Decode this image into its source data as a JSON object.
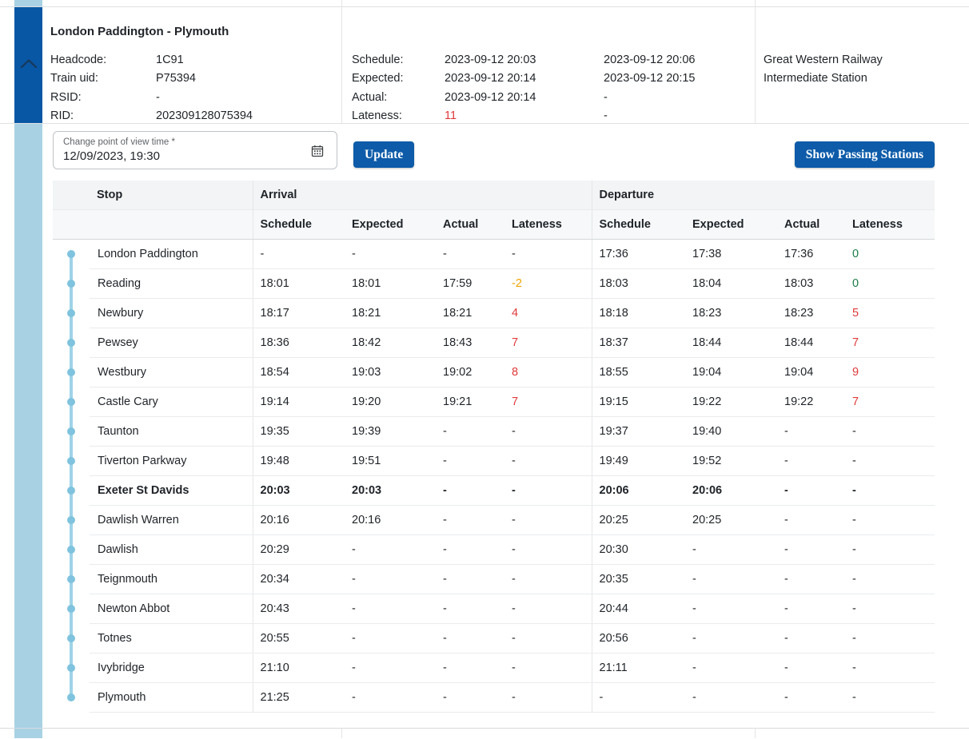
{
  "train_header": {
    "title": "London Paddington - Plymouth",
    "fields": [
      {
        "label": "Headcode:",
        "value": "1C91"
      },
      {
        "label": "Train uid:",
        "value": "P75394"
      },
      {
        "label": "RSID:",
        "value": "-"
      },
      {
        "label": "RID:",
        "value": "202309128075394"
      }
    ],
    "times": [
      {
        "label": "Schedule:",
        "arrival": "2023-09-12 20:03",
        "departure": "2023-09-12 20:06"
      },
      {
        "label": "Expected:",
        "arrival": "2023-09-12 20:14",
        "departure": "2023-09-12 20:15"
      },
      {
        "label": "Actual:",
        "arrival": "2023-09-12 20:14",
        "departure": "-"
      },
      {
        "label": "Lateness:",
        "arrival": "11",
        "departure": "-"
      }
    ],
    "operator": "Great Western Railway",
    "station_type": "Intermediate Station"
  },
  "controls": {
    "pov_label": "Change point of view time *",
    "pov_value": "12/09/2023, 19:30",
    "update_label": "Update",
    "show_passing_label": "Show Passing Stations"
  },
  "table": {
    "group_headers": [
      "Stop",
      "Arrival",
      "Departure"
    ],
    "sub_headers": [
      "Schedule",
      "Expected",
      "Actual",
      "Lateness"
    ],
    "rows": [
      {
        "stop": "London Paddington",
        "bold": false,
        "arr": [
          "-",
          "-",
          "-",
          "-"
        ],
        "dep": [
          "17:36",
          "17:38",
          "17:36",
          "0"
        ],
        "dep_late": "ontime"
      },
      {
        "stop": "Reading",
        "bold": false,
        "arr": [
          "18:01",
          "18:01",
          "17:59",
          "-2"
        ],
        "dep": [
          "18:03",
          "18:04",
          "18:03",
          "0"
        ],
        "arr_late": "early",
        "dep_late": "ontime"
      },
      {
        "stop": "Newbury",
        "bold": false,
        "arr": [
          "18:17",
          "18:21",
          "18:21",
          "4"
        ],
        "dep": [
          "18:18",
          "18:23",
          "18:23",
          "5"
        ],
        "arr_late": "late",
        "dep_late": "late"
      },
      {
        "stop": "Pewsey",
        "bold": false,
        "arr": [
          "18:36",
          "18:42",
          "18:43",
          "7"
        ],
        "dep": [
          "18:37",
          "18:44",
          "18:44",
          "7"
        ],
        "arr_late": "late",
        "dep_late": "late"
      },
      {
        "stop": "Westbury",
        "bold": false,
        "arr": [
          "18:54",
          "19:03",
          "19:02",
          "8"
        ],
        "dep": [
          "18:55",
          "19:04",
          "19:04",
          "9"
        ],
        "arr_late": "late",
        "dep_late": "late"
      },
      {
        "stop": "Castle Cary",
        "bold": false,
        "arr": [
          "19:14",
          "19:20",
          "19:21",
          "7"
        ],
        "dep": [
          "19:15",
          "19:22",
          "19:22",
          "7"
        ],
        "arr_late": "late",
        "dep_late": "late"
      },
      {
        "stop": "Taunton",
        "bold": false,
        "arr": [
          "19:35",
          "19:39",
          "-",
          "-"
        ],
        "dep": [
          "19:37",
          "19:40",
          "-",
          "-"
        ]
      },
      {
        "stop": "Tiverton Parkway",
        "bold": false,
        "arr": [
          "19:48",
          "19:51",
          "-",
          "-"
        ],
        "dep": [
          "19:49",
          "19:52",
          "-",
          "-"
        ]
      },
      {
        "stop": "Exeter St Davids",
        "bold": true,
        "arr": [
          "20:03",
          "20:03",
          "-",
          "-"
        ],
        "dep": [
          "20:06",
          "20:06",
          "-",
          "-"
        ]
      },
      {
        "stop": "Dawlish Warren",
        "bold": false,
        "arr": [
          "20:16",
          "20:16",
          "-",
          "-"
        ],
        "dep": [
          "20:25",
          "20:25",
          "-",
          "-"
        ]
      },
      {
        "stop": "Dawlish",
        "bold": false,
        "arr": [
          "20:29",
          "-",
          "-",
          "-"
        ],
        "dep": [
          "20:30",
          "-",
          "-",
          "-"
        ]
      },
      {
        "stop": "Teignmouth",
        "bold": false,
        "arr": [
          "20:34",
          "-",
          "-",
          "-"
        ],
        "dep": [
          "20:35",
          "-",
          "-",
          "-"
        ]
      },
      {
        "stop": "Newton Abbot",
        "bold": false,
        "arr": [
          "20:43",
          "-",
          "-",
          "-"
        ],
        "dep": [
          "20:44",
          "-",
          "-",
          "-"
        ]
      },
      {
        "stop": "Totnes",
        "bold": false,
        "arr": [
          "20:55",
          "-",
          "-",
          "-"
        ],
        "dep": [
          "20:56",
          "-",
          "-",
          "-"
        ]
      },
      {
        "stop": "Ivybridge",
        "bold": false,
        "arr": [
          "21:10",
          "-",
          "-",
          "-"
        ],
        "dep": [
          "21:11",
          "-",
          "-",
          "-"
        ]
      },
      {
        "stop": "Plymouth",
        "bold": false,
        "arr": [
          "21:25",
          "-",
          "-",
          "-"
        ],
        "dep": [
          "-",
          "-",
          "-",
          "-"
        ]
      }
    ]
  },
  "colors": {
    "dark_blue": "#0857a5",
    "button_blue": "#0d5ba9",
    "light_blue_rail": "#a8d2e3",
    "timeline_blue": "#7fc3de",
    "late_red": "#e03a3a",
    "ontime_green": "#1a7d45",
    "early_amber": "#f0a400"
  }
}
